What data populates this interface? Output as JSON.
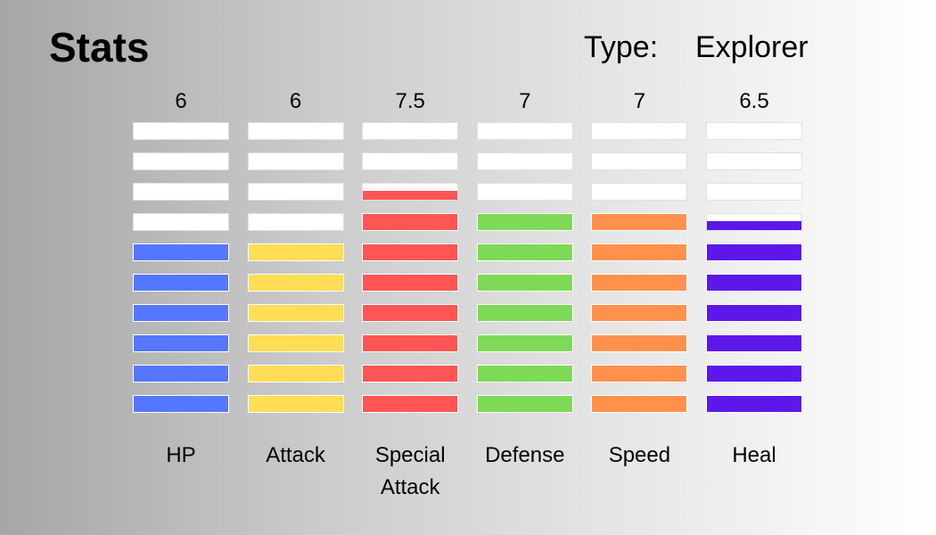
{
  "header": {
    "title": "Stats",
    "type_label": "Type:",
    "type_value": "Explorer"
  },
  "chart_data": {
    "type": "bar",
    "categories": [
      "HP",
      "Attack",
      "Special\nAttack",
      "Defense",
      "Speed",
      "Heal"
    ],
    "values": [
      6,
      6,
      7.5,
      7,
      7,
      6.5
    ],
    "value_labels": [
      "6",
      "6",
      "7.5",
      "7",
      "7",
      "6.5"
    ],
    "ylim": [
      0,
      10
    ],
    "colors": [
      "#5577ff",
      "#ffdd55",
      "#ff5555",
      "#7ed957",
      "#ff914d",
      "#5e17eb"
    ],
    "empty_color": "#ffffff"
  }
}
